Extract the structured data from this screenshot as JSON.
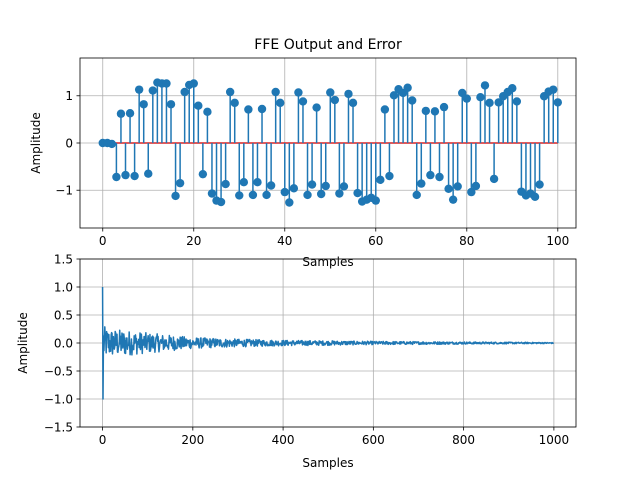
{
  "chart_data": [
    {
      "type": "stem",
      "title": "FFE Output and Error",
      "xlabel": "Samples",
      "ylabel": "Amplitude",
      "xlim": [
        -5,
        104
      ],
      "ylim": [
        -1.8,
        1.8
      ],
      "xticks": [
        0,
        20,
        40,
        60,
        80,
        100
      ],
      "yticks": [
        -1,
        0,
        1
      ],
      "grid": true,
      "colors": {
        "marker": "#1f77b4",
        "baseline": "#d62728"
      },
      "x_start": 0,
      "values": [
        0.0,
        0.0,
        -0.02,
        -0.72,
        0.62,
        -0.68,
        0.63,
        -0.7,
        1.13,
        0.82,
        -0.65,
        1.11,
        1.28,
        1.26,
        1.26,
        0.82,
        -1.12,
        -0.85,
        1.08,
        1.23,
        1.26,
        0.79,
        -0.66,
        0.66,
        -1.07,
        -1.22,
        -1.25,
        -0.87,
        1.08,
        0.85,
        -1.11,
        -0.83,
        0.71,
        -1.1,
        -0.83,
        0.72,
        -1.1,
        -0.9,
        1.08,
        0.85,
        -1.04,
        -1.26,
        -0.96,
        1.07,
        0.88,
        -1.1,
        -0.88,
        0.75,
        -1.08,
        -0.91,
        1.07,
        0.91,
        -1.07,
        -0.92,
        1.04,
        0.85,
        -1.06,
        -1.24,
        -1.2,
        -1.16,
        -1.22,
        -0.78,
        0.71,
        -0.7,
        1.01,
        1.14,
        1.06,
        1.17,
        0.9,
        -1.1,
        -0.86,
        0.68,
        -0.68,
        0.67,
        -0.72,
        0.76,
        -0.97,
        -1.2,
        -0.92,
        1.06,
        0.94,
        -1.04,
        -0.91,
        0.97,
        1.22,
        0.85,
        -0.76,
        0.86,
        0.99,
        1.08,
        1.16,
        0.88,
        -1.03,
        -1.11,
        -1.07,
        -1.14,
        -0.88,
        0.99,
        1.09,
        1.13,
        0.86
      ]
    },
    {
      "type": "line",
      "title": "",
      "xlabel": "Samples",
      "ylabel": "Amplitude",
      "xlim": [
        -50,
        1049
      ],
      "ylim": [
        -1.5,
        1.5
      ],
      "xticks": [
        0,
        200,
        400,
        600,
        800,
        1000
      ],
      "yticks": [
        -1.5,
        -1.0,
        -0.5,
        0.0,
        0.5,
        1.0,
        1.5
      ],
      "grid": true,
      "colors": {
        "line": "#1f77b4"
      },
      "n_samples": 1000,
      "envelope": {
        "x": [
          0,
          2,
          4,
          6,
          10,
          20,
          40,
          60,
          80,
          100,
          150,
          200,
          300,
          400,
          500,
          600,
          700,
          800,
          900,
          999
        ],
        "amplitude": [
          1.0,
          0.4,
          0.3,
          0.28,
          0.26,
          0.25,
          0.24,
          0.22,
          0.2,
          0.18,
          0.14,
          0.1,
          0.07,
          0.05,
          0.04,
          0.03,
          0.025,
          0.02,
          0.015,
          0.01
        ]
      }
    }
  ]
}
